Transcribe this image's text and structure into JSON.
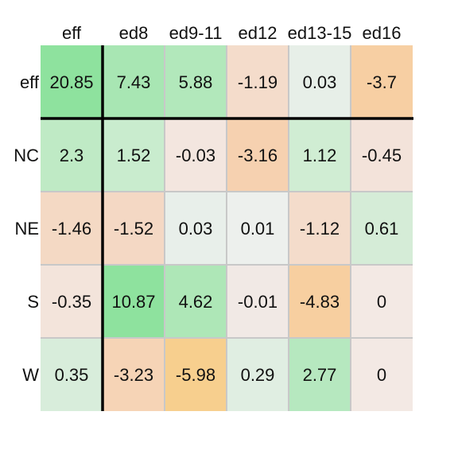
{
  "chart_data": {
    "type": "heatmap",
    "columns": [
      "eff",
      "ed8",
      "ed9-11",
      "ed12",
      "ed13-15",
      "ed16"
    ],
    "rows": [
      "eff",
      "NC",
      "NE",
      "S",
      "W"
    ],
    "values": [
      [
        "20.85",
        "7.43",
        "5.88",
        "-1.19",
        "0.03",
        "-3.7"
      ],
      [
        "2.3",
        "1.52",
        "-0.03",
        "-3.16",
        "1.12",
        "-0.45"
      ],
      [
        "-1.46",
        "-1.52",
        "0.03",
        "0.01",
        "-1.12",
        "0.61"
      ],
      [
        "-0.35",
        "10.87",
        "4.62",
        "-0.01",
        "-4.83",
        "0"
      ],
      [
        "0.35",
        "-3.23",
        "-5.98",
        "0.29",
        "2.77",
        "0"
      ]
    ],
    "cell_colors": [
      [
        "#8ee29e",
        "#a8e6b3",
        "#b2e8bb",
        "#f4dccb",
        "#e7efe8",
        "#f7cfa3"
      ],
      [
        "#bfeac5",
        "#c9ecce",
        "#f3e6df",
        "#f6d1b0",
        "#d0edd3",
        "#f3e3da"
      ],
      [
        "#f4d9c4",
        "#f4d8c4",
        "#e8efea",
        "#edf0ed",
        "#f4dccb",
        "#d5ecd7"
      ],
      [
        "#f3e4db",
        "#8ee29e",
        "#aee7b7",
        "#f1e9e5",
        "#f7cfa0",
        "#f3e9e4"
      ],
      [
        "#d8eddb",
        "#f6d4b6",
        "#f7cf8e",
        "#e0eee2",
        "#b6e8bf",
        "#f3e9e4"
      ]
    ],
    "grid_color": "#c8c8c8",
    "separator_color": "#000000"
  }
}
